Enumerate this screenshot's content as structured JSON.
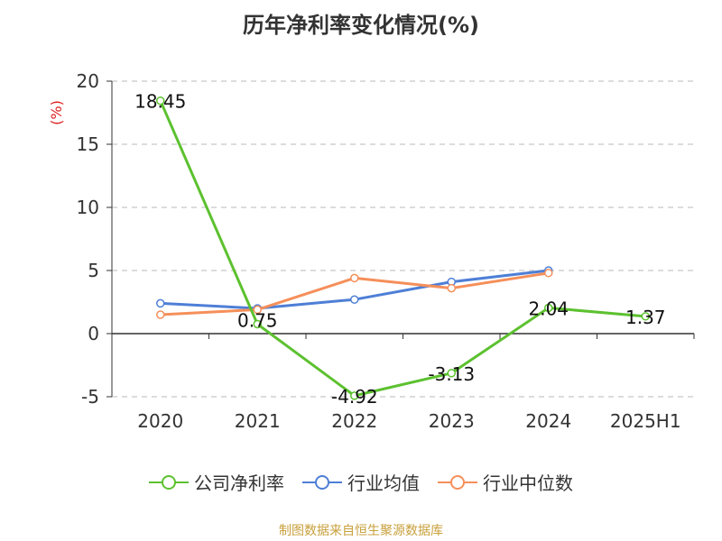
{
  "title": "历年净利率变化情况(%)",
  "source": "制图数据来自恒生聚源数据库",
  "chart_data": {
    "type": "line",
    "title": "历年净利率变化情况(%)",
    "ylabel": "(%)",
    "xlabel": "",
    "categories": [
      "2020",
      "2021",
      "2022",
      "2023",
      "2024",
      "2025H1"
    ],
    "ylim": [
      -5,
      20
    ],
    "yticks": [
      -5,
      0,
      5,
      10,
      15,
      20
    ],
    "grid": true,
    "legend_position": "bottom",
    "series": [
      {
        "name": "公司净利率",
        "color": "#5cc12f",
        "values": [
          18.45,
          0.75,
          -4.92,
          -3.13,
          2.04,
          1.37
        ],
        "labels": [
          "18.45",
          "0.75",
          "-4.92",
          "-3.13",
          "2.04",
          "1.37"
        ]
      },
      {
        "name": "行业均值",
        "color": "#4e7fd6",
        "values": [
          2.4,
          2.0,
          2.7,
          4.1,
          5.0,
          null
        ]
      },
      {
        "name": "行业中位数",
        "color": "#f58f5a",
        "values": [
          1.5,
          1.9,
          4.4,
          3.6,
          4.8,
          null
        ]
      }
    ]
  }
}
